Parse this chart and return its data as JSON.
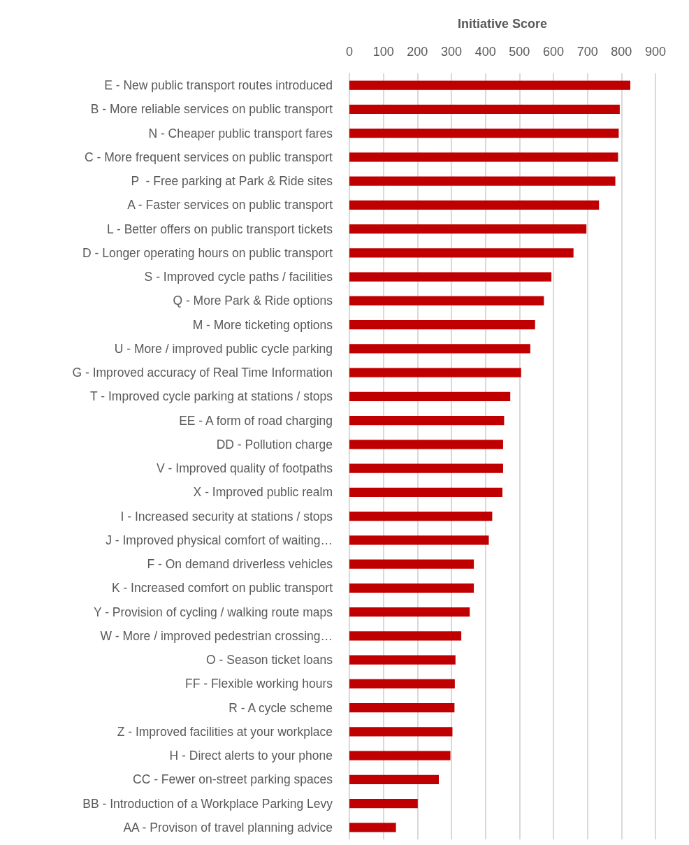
{
  "chart_data": {
    "type": "bar",
    "orientation": "horizontal",
    "xlabel": "Initiative Score",
    "categories": [
      "E - New public transport routes introduced",
      "B - More reliable services on public transport",
      "N - Cheaper public transport fares",
      "C - More frequent services on public transport",
      "P  - Free parking at Park & Ride sites",
      "A - Faster services on public transport",
      "L - Better offers on public transport tickets",
      "D - Longer operating hours on public transport",
      "S - Improved cycle paths / facilities",
      "Q - More Park & Ride options",
      "M - More ticketing options",
      "U - More / improved public cycle parking",
      "G - Improved accuracy of Real Time Information",
      "T - Improved cycle parking at stations / stops",
      "EE - A form of road charging",
      "DD - Pollution charge",
      "V - Improved quality of footpaths",
      "X - Improved public realm",
      "I - Increased security at stations / stops",
      "J - Improved physical comfort of waiting…",
      "F - On demand driverless vehicles",
      "K - Increased comfort on public transport",
      "Y - Provision of cycling / walking route maps",
      "W - More / improved pedestrian crossing…",
      "O - Season ticket loans",
      "FF - Flexible working hours",
      "R - A cycle scheme",
      "Z - Improved facilities at your workplace",
      "H - Direct alerts to your phone",
      "CC - Fewer on-street parking spaces",
      "BB - Introduction of a Workplace Parking Levy",
      "AA - Provison of travel planning advice"
    ],
    "values": [
      826,
      795,
      792,
      790,
      782,
      734,
      697,
      659,
      594,
      572,
      546,
      532,
      505,
      473,
      455,
      452,
      452,
      450,
      420,
      410,
      366,
      366,
      354,
      329,
      312,
      310,
      309,
      303,
      297,
      263,
      201,
      137
    ],
    "color": "#c00000",
    "xlim": [
      0,
      900
    ],
    "xticks": [
      0,
      100,
      200,
      300,
      400,
      500,
      600,
      700,
      800,
      900
    ],
    "grid": "x"
  }
}
